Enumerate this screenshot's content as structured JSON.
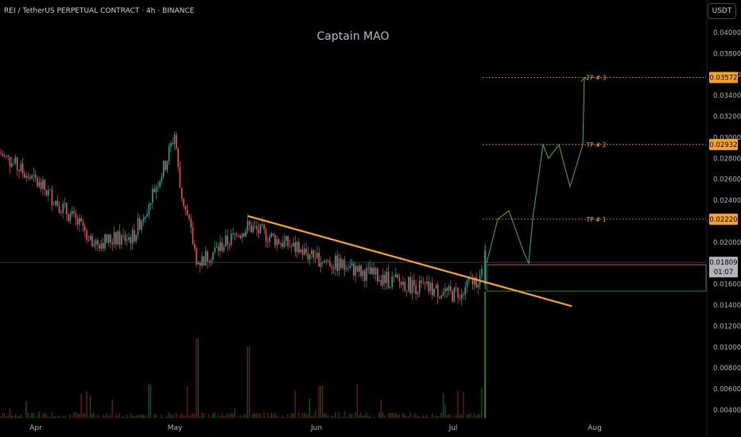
{
  "header": {
    "symbol_line": "REI / TetherUS PERPETUAL CONTRACT · 4h · BINANCE"
  },
  "watermark": "Captain MAO",
  "currency_button": "USDT",
  "colors": {
    "background": "#000000",
    "up": "#26a69a",
    "down": "#ef5350",
    "trendline": "#f7a428",
    "projection": "#4caf50",
    "tp_label": "#f7a428",
    "tp_badge_bg": "#f7a428",
    "price_badge_bg": "#b2b5be",
    "axis_text": "#b2b5be",
    "volume": "#1b5e20"
  },
  "price_axis": {
    "ticks": [
      "0.04000",
      "0.03800",
      "0.03600",
      "0.03400",
      "0.03200",
      "0.03000",
      "0.02800",
      "0.02600",
      "0.02400",
      "0.02000",
      "0.01600",
      "0.01400",
      "0.01200",
      "0.01000",
      "0.00800",
      "0.00600",
      "0.00400"
    ]
  },
  "time_axis": {
    "labels": [
      "Apr",
      "May",
      "Jun",
      "Jul",
      "Aug"
    ]
  },
  "targets": [
    {
      "label": "TP # 3",
      "price": "0.03572"
    },
    {
      "label": "TP # 2",
      "price": "0.02932"
    },
    {
      "label": "TP # 1",
      "price": "0.02220"
    }
  ],
  "current_price": {
    "price": "0.01809",
    "countdown": "01:07"
  },
  "chart_data": {
    "type": "candlestick",
    "title": "Captain MAO",
    "symbol": "REI / TetherUS PERPETUAL CONTRACT",
    "interval": "4h",
    "exchange": "BINANCE",
    "ylim": [
      0.0038,
      0.0415
    ],
    "x_labels": [
      "Apr",
      "May",
      "Jun",
      "Jul",
      "Aug"
    ],
    "price_path": [
      [
        "start",
        0.0285
      ],
      [
        "early-Apr",
        0.025
      ],
      [
        "mid-Apr",
        0.02
      ],
      [
        "late-Apr",
        0.0205
      ],
      [
        "end-Apr",
        0.0275
      ],
      [
        "May-1",
        0.0305
      ],
      [
        "May-2",
        0.0255
      ],
      [
        "May-6",
        0.018
      ],
      [
        "May-17",
        0.0215
      ],
      [
        "Jun-1",
        0.0185
      ],
      [
        "Jun-16",
        0.0165
      ],
      [
        "Jul-1",
        0.015
      ],
      [
        "Jul-8",
        0.017
      ]
    ],
    "trendline": {
      "start": [
        "May-17",
        0.0225
      ],
      "end": [
        "Jul-27",
        0.0139
      ]
    },
    "projection_path": [
      0.018,
      0.0222,
      0.023,
      0.019,
      0.018,
      0.0222,
      0.0293,
      0.028,
      0.0293,
      0.0253,
      0.0293,
      0.0357
    ],
    "target_levels": [
      0.03572,
      0.02932,
      0.0222
    ],
    "current_price": 0.01809,
    "range_box": [
      0.0155,
      0.018
    ]
  }
}
